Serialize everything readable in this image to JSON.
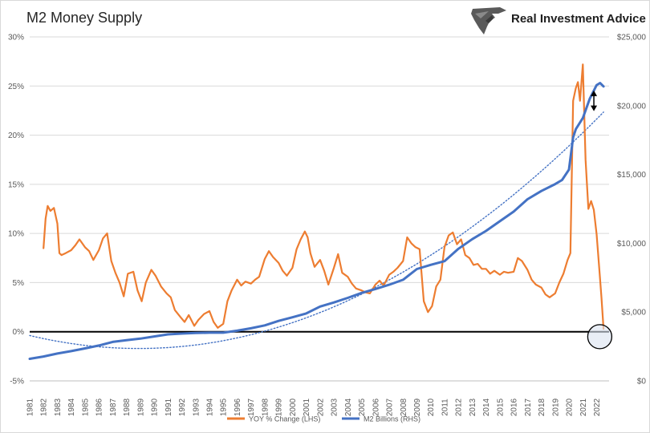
{
  "chart_data": {
    "type": "line",
    "title": "M2 Money Supply",
    "brand": "Real Investment Advice",
    "x_ticks": [
      "1981",
      "1982",
      "1983",
      "1984",
      "1985",
      "1986",
      "1987",
      "1988",
      "1989",
      "1990",
      "1991",
      "1992",
      "1993",
      "1994",
      "1995",
      "1996",
      "1997",
      "1998",
      "1999",
      "2000",
      "2001",
      "2002",
      "2003",
      "2004",
      "2005",
      "2006",
      "2007",
      "2008",
      "2009",
      "2010",
      "2011",
      "2012",
      "2013",
      "2014",
      "2015",
      "2016",
      "2017",
      "2018",
      "2019",
      "2020",
      "2021",
      "2022"
    ],
    "left_axis": {
      "ticks": [
        "30%",
        "25%",
        "20%",
        "15%",
        "10%",
        "5%",
        "0%",
        "-5%"
      ],
      "ylim": [
        -5,
        30
      ]
    },
    "right_axis": {
      "ticks": [
        "$25,000",
        "$20,000",
        "$15,000",
        "$10,000",
        "$5,000",
        "$0"
      ],
      "ylim": [
        0,
        25000
      ]
    },
    "series": [
      {
        "name": "YOY % Change (LHS)",
        "axis": "left",
        "color": "#ED7D31",
        "x": [
          1982.0,
          1982.15,
          1982.3,
          1982.5,
          1982.75,
          1983.0,
          1983.15,
          1983.3,
          1983.6,
          1984.0,
          1984.3,
          1984.6,
          1985.0,
          1985.3,
          1985.6,
          1986.0,
          1986.3,
          1986.6,
          1986.9,
          1987.2,
          1987.5,
          1987.8,
          1988.1,
          1988.5,
          1988.8,
          1989.1,
          1989.4,
          1989.8,
          1990.1,
          1990.5,
          1990.9,
          1991.2,
          1991.5,
          1991.9,
          1992.2,
          1992.5,
          1992.9,
          1993.2,
          1993.6,
          1994.0,
          1994.3,
          1994.6,
          1995.0,
          1995.3,
          1995.6,
          1996.0,
          1996.3,
          1996.6,
          1997.0,
          1997.3,
          1997.6,
          1998.0,
          1998.3,
          1998.6,
          1999.0,
          1999.3,
          1999.6,
          2000.0,
          2000.3,
          2000.6,
          2000.9,
          2001.1,
          2001.3,
          2001.6,
          2002.0,
          2002.3,
          2002.6,
          2003.0,
          2003.3,
          2003.6,
          2004.0,
          2004.3,
          2004.6,
          2005.0,
          2005.3,
          2005.6,
          2006.0,
          2006.3,
          2006.6,
          2007.0,
          2007.3,
          2007.6,
          2008.0,
          2008.3,
          2008.6,
          2008.9,
          2009.2,
          2009.5,
          2009.8,
          2010.1,
          2010.4,
          2010.7,
          2011.0,
          2011.3,
          2011.6,
          2011.9,
          2012.2,
          2012.5,
          2012.8,
          2013.1,
          2013.4,
          2013.7,
          2014.0,
          2014.3,
          2014.6,
          2015.0,
          2015.3,
          2015.6,
          2016.0,
          2016.3,
          2016.6,
          2017.0,
          2017.3,
          2017.6,
          2018.0,
          2018.3,
          2018.6,
          2019.0,
          2019.3,
          2019.6,
          2019.9,
          2020.1,
          2020.3,
          2020.5,
          2020.65,
          2020.8,
          2021.0,
          2021.2,
          2021.4,
          2021.6,
          2021.8,
          2022.0,
          2022.2,
          2022.35,
          2022.5
        ],
        "values": [
          8.5,
          11.5,
          12.8,
          12.3,
          12.6,
          11.0,
          8.0,
          7.8,
          8.0,
          8.3,
          8.8,
          9.4,
          8.6,
          8.2,
          7.3,
          8.3,
          9.5,
          10.0,
          7.2,
          6.0,
          5.0,
          3.6,
          5.9,
          6.1,
          4.2,
          3.1,
          5.0,
          6.3,
          5.7,
          4.6,
          3.9,
          3.5,
          2.2,
          1.5,
          1.0,
          1.7,
          0.6,
          1.2,
          1.8,
          2.1,
          1.0,
          0.4,
          0.8,
          3.1,
          4.2,
          5.3,
          4.7,
          5.1,
          4.9,
          5.3,
          5.6,
          7.4,
          8.2,
          7.6,
          7.0,
          6.2,
          5.7,
          6.5,
          8.4,
          9.4,
          10.2,
          9.6,
          8.0,
          6.6,
          7.3,
          6.2,
          4.8,
          6.5,
          7.9,
          6.0,
          5.6,
          4.9,
          4.4,
          4.2,
          4.0,
          3.9,
          4.8,
          5.2,
          4.7,
          5.8,
          6.1,
          6.5,
          7.2,
          9.6,
          9.0,
          8.6,
          8.4,
          3.1,
          2.0,
          2.6,
          4.6,
          5.3,
          8.6,
          9.8,
          10.1,
          8.9,
          9.4,
          7.8,
          7.5,
          6.8,
          6.9,
          6.4,
          6.4,
          5.9,
          6.2,
          5.8,
          6.1,
          6.0,
          6.1,
          7.5,
          7.2,
          6.3,
          5.3,
          4.8,
          4.5,
          3.8,
          3.5,
          3.9,
          5.0,
          5.9,
          7.3,
          8.0,
          23.5,
          24.8,
          25.4,
          23.5,
          27.2,
          17.5,
          12.5,
          13.3,
          12.4,
          9.9,
          6.3,
          3.5,
          0.3
        ]
      },
      {
        "name": "M2 Billions (RHS)",
        "axis": "right",
        "color": "#4472C4",
        "x": [
          1981.0,
          1982.0,
          1983.0,
          1984.0,
          1985.0,
          1986.0,
          1987.0,
          1988.0,
          1989.0,
          1990.0,
          1991.0,
          1992.0,
          1993.0,
          1994.0,
          1995.0,
          1996.0,
          1997.0,
          1998.0,
          1999.0,
          2000.0,
          2001.0,
          2002.0,
          2003.0,
          2004.0,
          2005.0,
          2006.0,
          2007.0,
          2008.0,
          2009.0,
          2010.0,
          2011.0,
          2012.0,
          2013.0,
          2014.0,
          2015.0,
          2016.0,
          2017.0,
          2018.0,
          2019.0,
          2019.5,
          2020.0,
          2020.3,
          2020.5,
          2021.0,
          2021.5,
          2022.0,
          2022.25,
          2022.5
        ],
        "values": [
          1600,
          1770,
          1990,
          2160,
          2360,
          2570,
          2830,
          2960,
          3070,
          3230,
          3380,
          3440,
          3480,
          3500,
          3500,
          3650,
          3820,
          4030,
          4360,
          4620,
          4900,
          5400,
          5700,
          6030,
          6390,
          6680,
          6990,
          7350,
          8130,
          8430,
          8700,
          9600,
          10300,
          10900,
          11600,
          12300,
          13200,
          13800,
          14300,
          14600,
          15350,
          17700,
          18300,
          19100,
          20500,
          21500,
          21650,
          21400
        ]
      }
    ],
    "trendline": {
      "type": "polynomial",
      "axis": "right",
      "color": "#4472C4",
      "style": "dotted"
    },
    "annotations": [
      {
        "type": "double-arrow",
        "x": 2021.8,
        "from": 21100,
        "to": 19600,
        "axis": "right"
      },
      {
        "type": "circle",
        "x": 2022.4,
        "y": -0.5,
        "axis": "left",
        "fill": "#dbe3f0"
      }
    ],
    "legend": {
      "placement": "bottom-center",
      "entries": [
        "YOY % Change (LHS)",
        "M2 Billions (RHS)"
      ]
    },
    "grid": {
      "horizontal": true,
      "vertical": false
    }
  }
}
